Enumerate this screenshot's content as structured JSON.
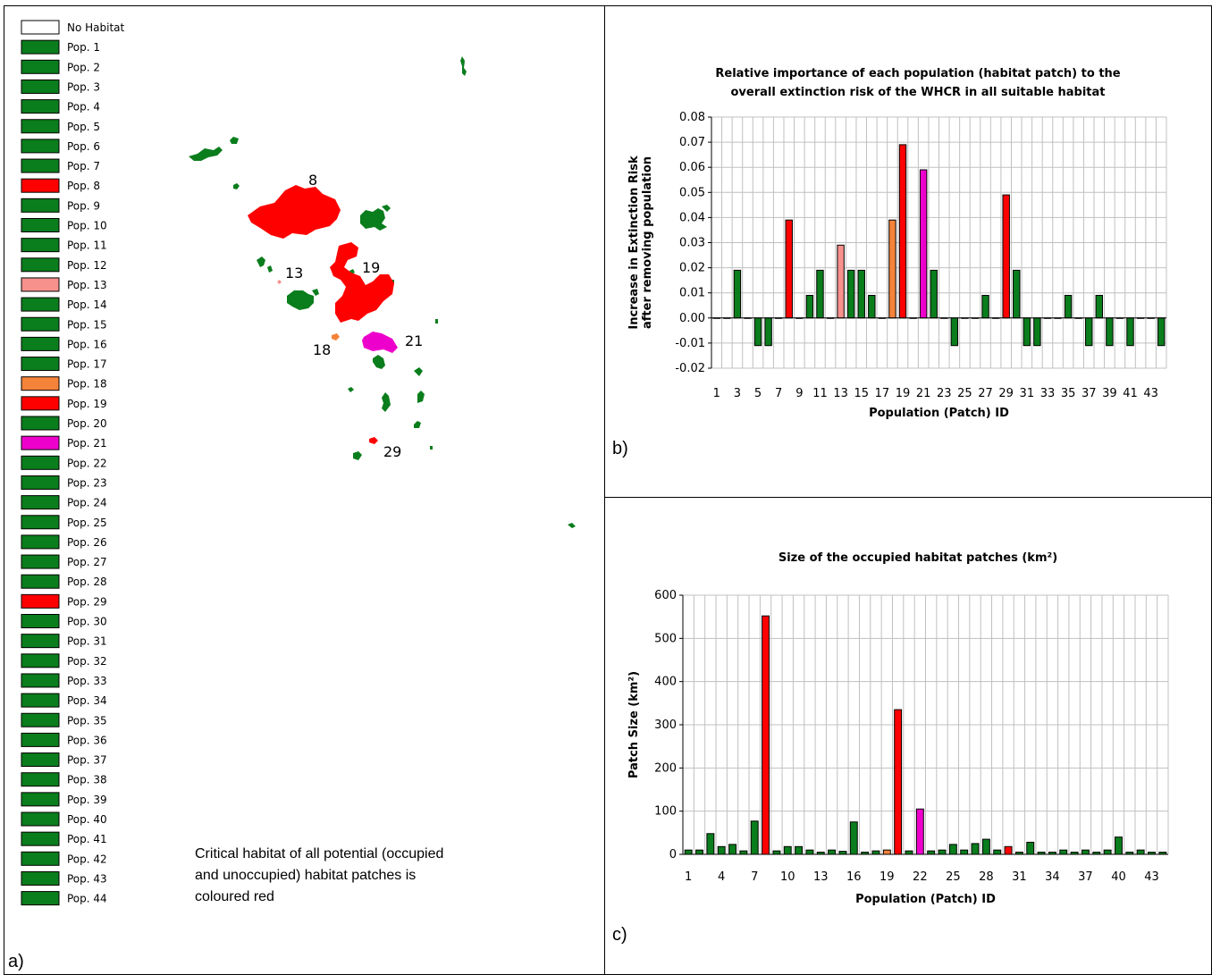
{
  "colors": {
    "green": "#0a7d1c",
    "red": "#ff0000",
    "pink": "#f6918c",
    "orange": "#f5833a",
    "magenta": "#ee00cc",
    "grid": "#c0c0c0"
  },
  "panel_a": {
    "letter": "a)",
    "caption": "Critical habitat of all potential (occupied and unoccupied) habitat patches is coloured red",
    "legend": [
      {
        "label": "No Habitat",
        "color": "#ffffff"
      },
      {
        "label": "Pop. 1",
        "color": "green"
      },
      {
        "label": "Pop. 2",
        "color": "green"
      },
      {
        "label": "Pop. 3",
        "color": "green"
      },
      {
        "label": "Pop. 4",
        "color": "green"
      },
      {
        "label": "Pop. 5",
        "color": "green"
      },
      {
        "label": "Pop. 6",
        "color": "green"
      },
      {
        "label": "Pop. 7",
        "color": "green"
      },
      {
        "label": "Pop. 8",
        "color": "red"
      },
      {
        "label": "Pop. 9",
        "color": "green"
      },
      {
        "label": "Pop. 10",
        "color": "green"
      },
      {
        "label": "Pop. 11",
        "color": "green"
      },
      {
        "label": "Pop. 12",
        "color": "green"
      },
      {
        "label": "Pop. 13",
        "color": "pink"
      },
      {
        "label": "Pop. 14",
        "color": "green"
      },
      {
        "label": "Pop. 15",
        "color": "green"
      },
      {
        "label": "Pop. 16",
        "color": "green"
      },
      {
        "label": "Pop. 17",
        "color": "green"
      },
      {
        "label": "Pop. 18",
        "color": "orange"
      },
      {
        "label": "Pop. 19",
        "color": "red"
      },
      {
        "label": "Pop. 20",
        "color": "green"
      },
      {
        "label": "Pop. 21",
        "color": "magenta"
      },
      {
        "label": "Pop. 22",
        "color": "green"
      },
      {
        "label": "Pop. 23",
        "color": "green"
      },
      {
        "label": "Pop. 24",
        "color": "green"
      },
      {
        "label": "Pop. 25",
        "color": "green"
      },
      {
        "label": "Pop. 26",
        "color": "green"
      },
      {
        "label": "Pop. 27",
        "color": "green"
      },
      {
        "label": "Pop. 28",
        "color": "green"
      },
      {
        "label": "Pop. 29",
        "color": "red"
      },
      {
        "label": "Pop. 30",
        "color": "green"
      },
      {
        "label": "Pop. 31",
        "color": "green"
      },
      {
        "label": "Pop. 32",
        "color": "green"
      },
      {
        "label": "Pop. 33",
        "color": "green"
      },
      {
        "label": "Pop. 34",
        "color": "green"
      },
      {
        "label": "Pop. 35",
        "color": "green"
      },
      {
        "label": "Pop. 36",
        "color": "green"
      },
      {
        "label": "Pop. 37",
        "color": "green"
      },
      {
        "label": "Pop. 38",
        "color": "green"
      },
      {
        "label": "Pop. 39",
        "color": "green"
      },
      {
        "label": "Pop. 40",
        "color": "green"
      },
      {
        "label": "Pop. 41",
        "color": "green"
      },
      {
        "label": "Pop. 42",
        "color": "green"
      },
      {
        "label": "Pop. 43",
        "color": "green"
      },
      {
        "label": "Pop. 44",
        "color": "green"
      }
    ],
    "map_labels": [
      "8",
      "13",
      "19",
      "18",
      "21",
      "29"
    ]
  },
  "chart_data": [
    {
      "id": "b",
      "type": "bar",
      "panel_letter": "b)",
      "title": "Relative importance of each population (habitat patch) to the overall extinction risk of the WHCR in all suitable habitat",
      "title_lines": [
        "Relative importance of each population (habitat patch) to the",
        "overall extinction risk of the WHCR in all suitable habitat"
      ],
      "xlabel": "Population (Patch) ID",
      "ylabel_lines": [
        "Increase in Extinction Risk",
        "after removing population"
      ],
      "ylim": [
        -0.02,
        0.08
      ],
      "yticks": [
        -0.02,
        -0.01,
        0.0,
        0.01,
        0.02,
        0.03,
        0.04,
        0.05,
        0.06,
        0.07,
        0.08
      ],
      "ytick_labels": [
        "-0.02",
        "-0.01",
        "0.00",
        "0.01",
        "0.02",
        "0.03",
        "0.04",
        "0.05",
        "0.06",
        "0.07",
        "0.08"
      ],
      "xtick_labels": [
        "1",
        "3",
        "5",
        "7",
        "9",
        "11",
        "13",
        "15",
        "17",
        "19",
        "21",
        "23",
        "25",
        "27",
        "29",
        "31",
        "33",
        "35",
        "37",
        "39",
        "41",
        "43"
      ],
      "grid": true,
      "categories": [
        "1",
        "2",
        "3",
        "4",
        "5",
        "6",
        "7",
        "8",
        "9",
        "10",
        "11",
        "12",
        "13",
        "14",
        "15",
        "16",
        "17",
        "18",
        "19",
        "20",
        "21",
        "22",
        "23",
        "24",
        "25",
        "26",
        "27",
        "28",
        "29",
        "30",
        "31",
        "32",
        "33",
        "34",
        "35",
        "36",
        "37",
        "38",
        "39",
        "40",
        "41",
        "42",
        "43",
        "44"
      ],
      "values": [
        0,
        0,
        0.019,
        0,
        -0.011,
        -0.011,
        0,
        0.039,
        0,
        0.009,
        0.019,
        0,
        0.029,
        0.019,
        0.019,
        0.009,
        0,
        0.039,
        0.069,
        0,
        0.059,
        0.019,
        0,
        -0.011,
        0,
        0,
        0.009,
        0,
        0.049,
        0.019,
        -0.011,
        -0.011,
        0,
        0,
        0.009,
        0,
        -0.011,
        0.009,
        -0.011,
        0,
        -0.011,
        0,
        0,
        -0.011
      ],
      "bar_colors": [
        "green",
        "green",
        "green",
        "green",
        "green",
        "green",
        "green",
        "red",
        "green",
        "green",
        "green",
        "green",
        "pink",
        "green",
        "green",
        "green",
        "green",
        "orange",
        "red",
        "green",
        "magenta",
        "green",
        "green",
        "green",
        "green",
        "green",
        "green",
        "green",
        "red",
        "green",
        "green",
        "green",
        "green",
        "green",
        "green",
        "green",
        "green",
        "green",
        "green",
        "green",
        "green",
        "green",
        "green",
        "green"
      ]
    },
    {
      "id": "c",
      "type": "bar",
      "panel_letter": "c)",
      "title": "Size of the occupied habitat patches (km²)",
      "xlabel": "Population (Patch) ID",
      "ylabel": "Patch Size (km²)",
      "ylim": [
        0,
        600
      ],
      "yticks": [
        0,
        100,
        200,
        300,
        400,
        500,
        600
      ],
      "ytick_labels": [
        "0",
        "100",
        "200",
        "300",
        "400",
        "500",
        "600"
      ],
      "xtick_labels": [
        "1",
        "4",
        "7",
        "10",
        "13",
        "16",
        "19",
        "22",
        "25",
        "28",
        "31",
        "34",
        "37",
        "40",
        "43"
      ],
      "grid": true,
      "categories": [
        "1",
        "2",
        "3",
        "4",
        "5",
        "6",
        "7",
        "8",
        "9",
        "10",
        "11",
        "12",
        "13",
        "14",
        "15",
        "16",
        "17",
        "18",
        "19",
        "20",
        "21",
        "22",
        "23",
        "24",
        "25",
        "26",
        "27",
        "28",
        "29",
        "30",
        "31",
        "32",
        "33",
        "34",
        "35",
        "36",
        "37",
        "38",
        "39",
        "40",
        "41",
        "42",
        "43",
        "44"
      ],
      "values": [
        10,
        10,
        48,
        18,
        23,
        8,
        77,
        552,
        8,
        18,
        18,
        10,
        5,
        10,
        7,
        75,
        5,
        8,
        10,
        335,
        8,
        105,
        8,
        10,
        23,
        10,
        25,
        35,
        10,
        18,
        5,
        28,
        5,
        5,
        10,
        5,
        10,
        5,
        10,
        40,
        5,
        10,
        5,
        5
      ],
      "bar_colors": [
        "green",
        "green",
        "green",
        "green",
        "green",
        "green",
        "green",
        "red",
        "green",
        "green",
        "green",
        "green",
        "green",
        "green",
        "green",
        "green",
        "green",
        "green",
        "orange",
        "red",
        "green",
        "magenta",
        "green",
        "green",
        "green",
        "green",
        "green",
        "green",
        "green",
        "red",
        "green",
        "green",
        "green",
        "green",
        "green",
        "green",
        "green",
        "green",
        "green",
        "green",
        "green",
        "green",
        "green",
        "green"
      ]
    }
  ]
}
